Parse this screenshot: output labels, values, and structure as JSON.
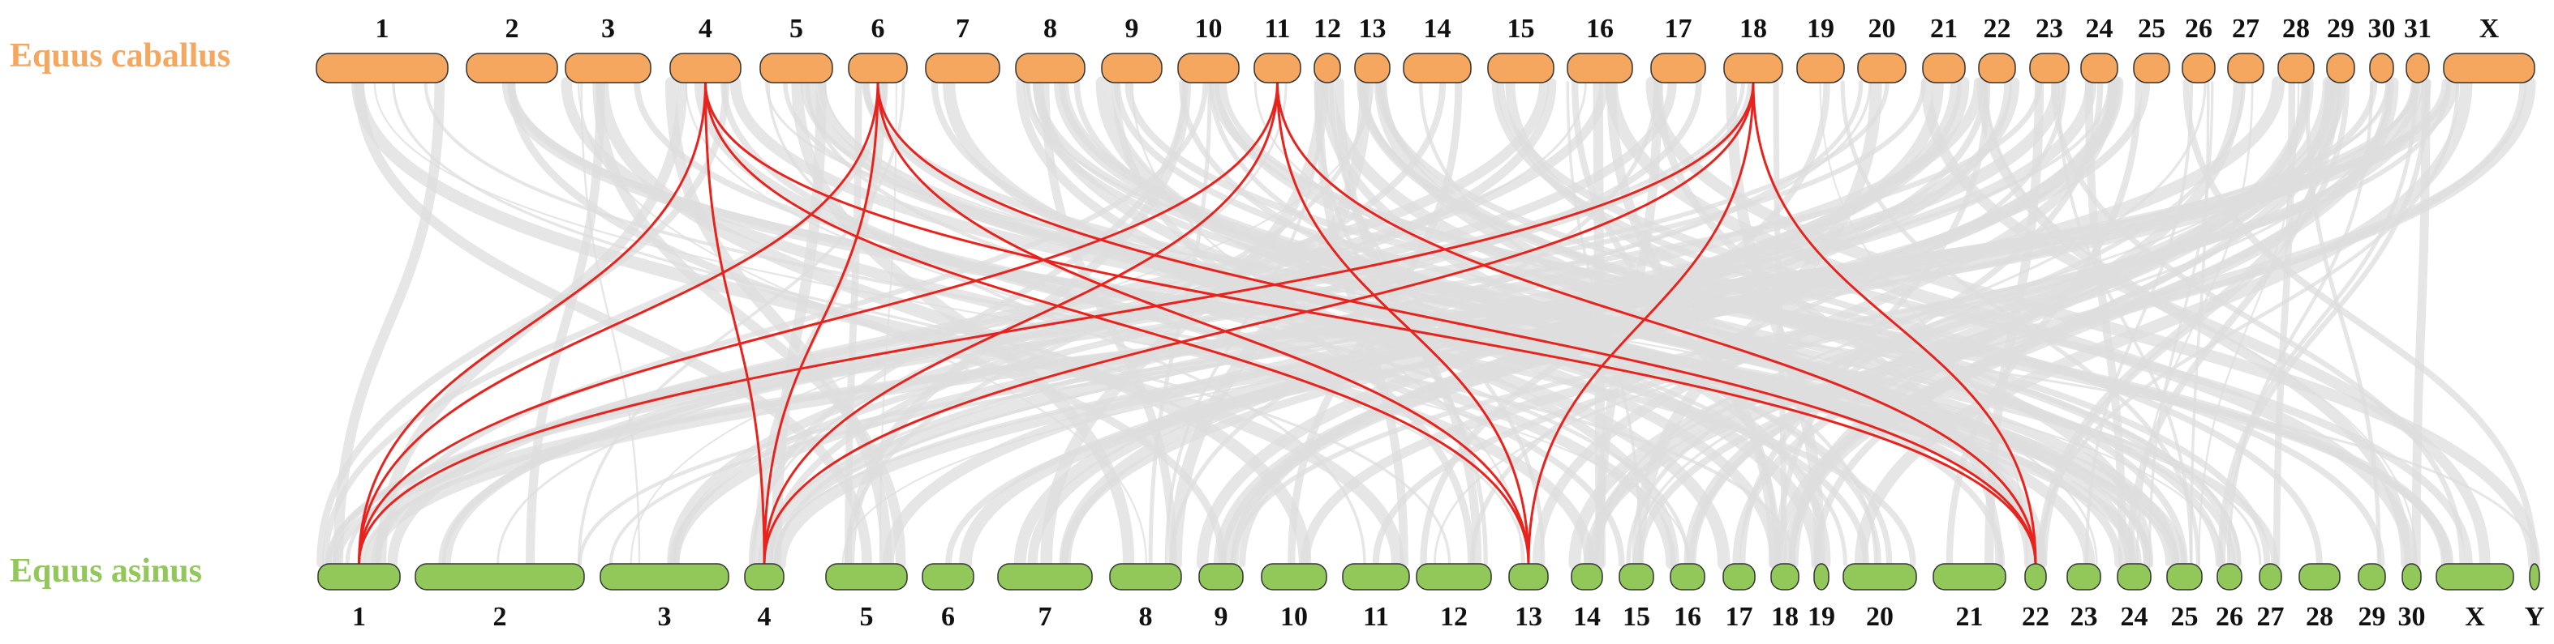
{
  "top_species": {
    "name": "Equus caballus",
    "color": "#F5A75F",
    "chromosomes": [
      "1",
      "2",
      "3",
      "4",
      "5",
      "6",
      "7",
      "8",
      "9",
      "10",
      "11",
      "12",
      "13",
      "14",
      "15",
      "16",
      "17",
      "18",
      "19",
      "20",
      "21",
      "22",
      "23",
      "24",
      "25",
      "26",
      "27",
      "28",
      "29",
      "30",
      "31",
      "X"
    ]
  },
  "bottom_species": {
    "name": "Equus asinus",
    "color": "#92C85A",
    "chromosomes": [
      "1",
      "2",
      "3",
      "4",
      "5",
      "6",
      "7",
      "8",
      "9",
      "10",
      "11",
      "12",
      "13",
      "14",
      "15",
      "16",
      "17",
      "18",
      "19",
      "20",
      "21",
      "22",
      "23",
      "24",
      "25",
      "26",
      "27",
      "28",
      "29",
      "30",
      "X",
      "Y"
    ]
  },
  "background_link_color": "#DEDEDE",
  "highlight_link_color": "#E8231D",
  "highlighted_links": [
    {
      "top": "4",
      "bottom": "1"
    },
    {
      "top": "4",
      "bottom": "4"
    },
    {
      "top": "4",
      "bottom": "13"
    },
    {
      "top": "4",
      "bottom": "22"
    },
    {
      "top": "6",
      "bottom": "1"
    },
    {
      "top": "6",
      "bottom": "4"
    },
    {
      "top": "6",
      "bottom": "13"
    },
    {
      "top": "6",
      "bottom": "22"
    },
    {
      "top": "11",
      "bottom": "1"
    },
    {
      "top": "11",
      "bottom": "4"
    },
    {
      "top": "11",
      "bottom": "13"
    },
    {
      "top": "11",
      "bottom": "22"
    },
    {
      "top": "18",
      "bottom": "1"
    },
    {
      "top": "18",
      "bottom": "4"
    },
    {
      "top": "18",
      "bottom": "13"
    },
    {
      "top": "18",
      "bottom": "22"
    }
  ]
}
